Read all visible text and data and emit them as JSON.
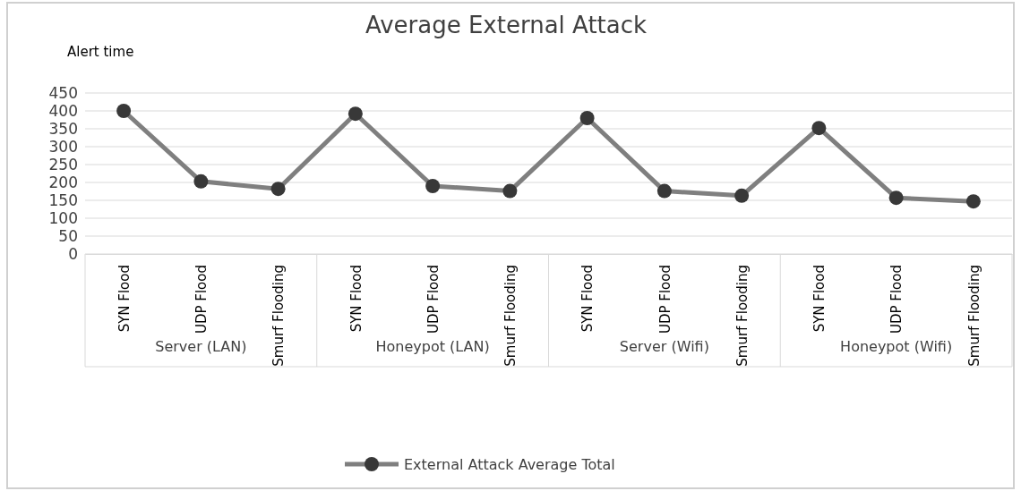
{
  "chart_data": {
    "type": "line",
    "title": "Average External Attack",
    "ylabel": "Alert time",
    "categories": [
      "SYN Flood",
      "UDP Flood",
      "Smurf Flooding",
      "SYN Flood",
      "UDP Flood",
      "Smurf Flooding",
      "SYN Flood",
      "UDP Flood",
      "Smurf Flooding",
      "SYN Flood",
      "UDP Flood",
      "Smurf Flooding"
    ],
    "annotations": [
      "Server (LAN)",
      "Honeypot (LAN)",
      "Server (Wifi)",
      "Honeypot (Wifi)"
    ],
    "series": [
      {
        "name": "External Attack Average Total",
        "color": "#7f7f7f",
        "values": [
          400,
          203,
          182,
          392,
          190,
          176,
          380,
          176,
          163,
          352,
          157,
          147
        ]
      }
    ],
    "ylim": [
      0,
      450
    ],
    "yticks": [
      0,
      50,
      100,
      150,
      200,
      250,
      300,
      350,
      400,
      450
    ],
    "grid": "y",
    "legend": "bottom",
    "marker": "circle"
  }
}
